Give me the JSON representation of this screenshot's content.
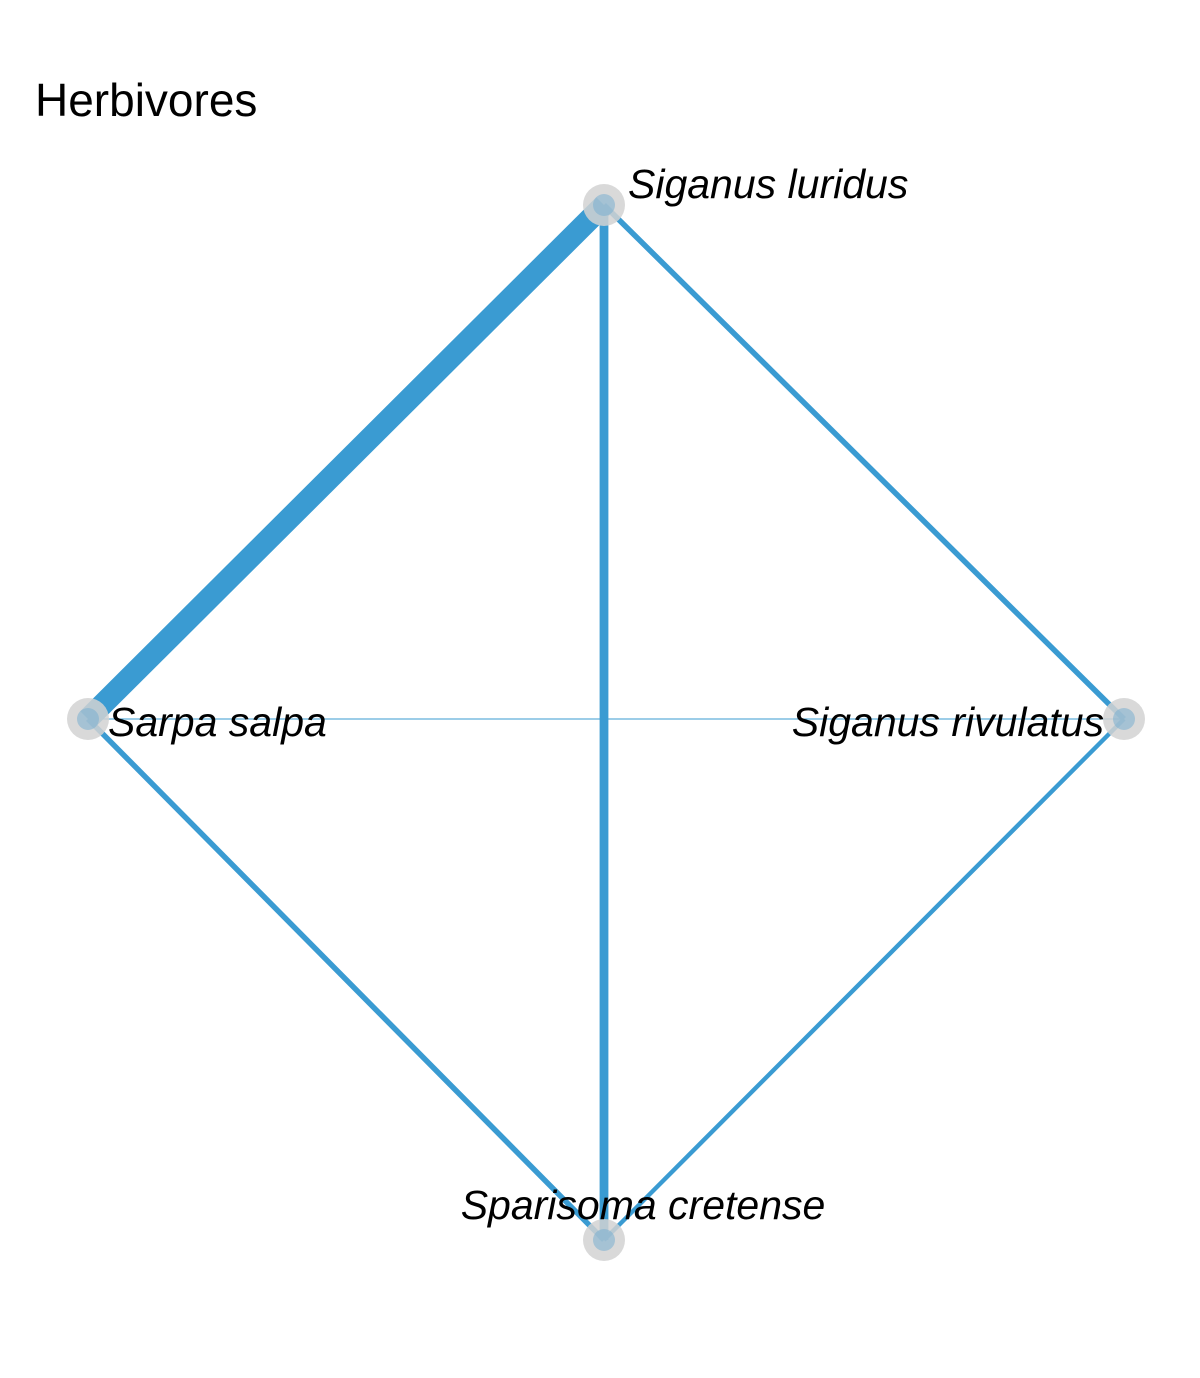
{
  "title": "Herbivores",
  "colors": {
    "edge": "#3a9bd2",
    "node_halo": "#d2d2d2",
    "node_core": "#7aaed0",
    "text": "#000000",
    "background": "#ffffff"
  },
  "nodes": [
    {
      "id": "siganus-luridus",
      "label": "Siganus luridus"
    },
    {
      "id": "sarpa-salpa",
      "label": "Sarpa salpa"
    },
    {
      "id": "siganus-rivulatus",
      "label": "Siganus rivulatus"
    },
    {
      "id": "sparisoma-cretense",
      "label": "Sparisoma cretense"
    }
  ],
  "edges": [
    {
      "source": "siganus-luridus",
      "target": "sarpa-salpa",
      "weight": 10
    },
    {
      "source": "siganus-luridus",
      "target": "sparisoma-cretense",
      "weight": 4
    },
    {
      "source": "siganus-luridus",
      "target": "siganus-rivulatus",
      "weight": 2.5
    },
    {
      "source": "sarpa-salpa",
      "target": "sparisoma-cretense",
      "weight": 2.5
    },
    {
      "source": "siganus-rivulatus",
      "target": "sparisoma-cretense",
      "weight": 2
    },
    {
      "source": "sarpa-salpa",
      "target": "siganus-rivulatus",
      "weight": 0.5
    }
  ]
}
